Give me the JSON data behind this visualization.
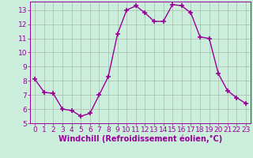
{
  "x": [
    0,
    1,
    2,
    3,
    4,
    5,
    6,
    7,
    8,
    9,
    10,
    11,
    12,
    13,
    14,
    15,
    16,
    17,
    18,
    19,
    20,
    21,
    22,
    23
  ],
  "y": [
    8.1,
    7.2,
    7.1,
    6.0,
    5.9,
    5.5,
    5.7,
    7.0,
    8.3,
    11.3,
    13.0,
    13.3,
    12.8,
    12.2,
    12.2,
    13.4,
    13.3,
    12.8,
    11.1,
    11.0,
    8.5,
    7.3,
    6.8,
    6.4
  ],
  "line_color": "#990099",
  "marker": "+",
  "marker_size": 4,
  "xlim": [
    -0.5,
    23.5
  ],
  "ylim": [
    5,
    13.6
  ],
  "yticks": [
    5,
    6,
    7,
    8,
    9,
    10,
    11,
    12,
    13
  ],
  "xticks": [
    0,
    1,
    2,
    3,
    4,
    5,
    6,
    7,
    8,
    9,
    10,
    11,
    12,
    13,
    14,
    15,
    16,
    17,
    18,
    19,
    20,
    21,
    22,
    23
  ],
  "xlabel": "Windchill (Refroidissement éolien,°C)",
  "bg_color": "#cceedd",
  "grid_color": "#aabbaa",
  "tick_color": "#990099",
  "label_color": "#990099",
  "font_size": 6.5,
  "xlabel_fontsize": 7,
  "marker_color": "#990099",
  "linewidth": 1.0
}
